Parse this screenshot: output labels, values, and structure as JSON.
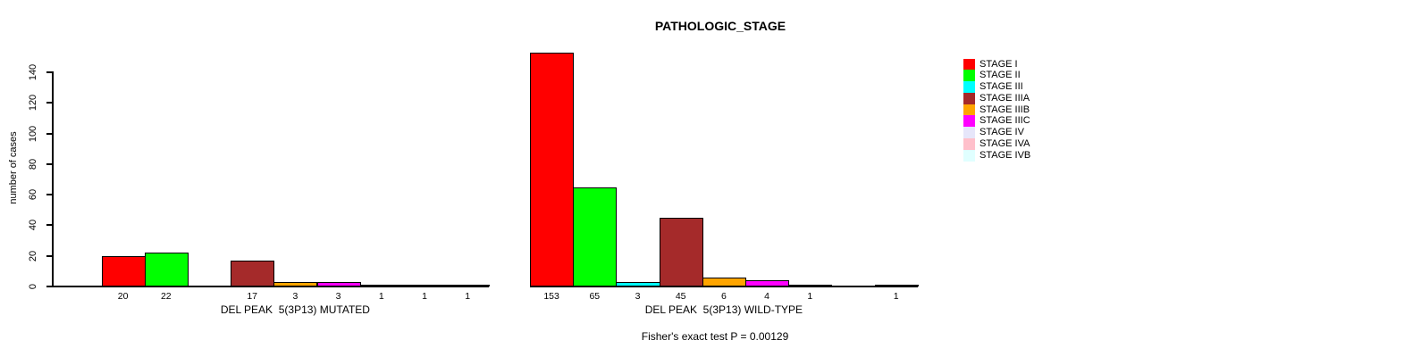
{
  "chart_data": {
    "type": "bar",
    "title": "PATHOLOGIC_STAGE",
    "ylabel": "number of cases",
    "footnote": "Fisher's exact test P = 0.00129",
    "ylim": [
      0,
      140
    ],
    "yticks": [
      0,
      20,
      40,
      60,
      80,
      100,
      120,
      140
    ],
    "grid": false,
    "legend_position": "right",
    "categories": [
      "STAGE I",
      "STAGE II",
      "STAGE III",
      "STAGE IIIA",
      "STAGE IIIB",
      "STAGE IIIC",
      "STAGE IV",
      "STAGE IVA",
      "STAGE IVB"
    ],
    "colors": [
      "#FF0000",
      "#00FF00",
      "#00FFFF",
      "#A52A2A",
      "#FFA500",
      "#FF00FF",
      "#E6E6FA",
      "#FFC0CB",
      "#E0FFFF"
    ],
    "series": [
      {
        "name": "DEL PEAK  5(3P13) MUTATED",
        "values": [
          20,
          22,
          0,
          17,
          3,
          3,
          1,
          1,
          1
        ]
      },
      {
        "name": "DEL PEAK  5(3P13) WILD-TYPE",
        "values": [
          153,
          65,
          3,
          45,
          6,
          4,
          1,
          0,
          1
        ]
      }
    ]
  }
}
